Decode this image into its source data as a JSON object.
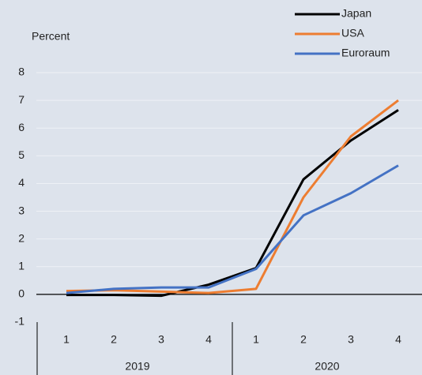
{
  "chart_data": {
    "type": "line",
    "y_label": "Percent",
    "categories": [
      "1",
      "2",
      "3",
      "4",
      "1",
      "2",
      "3",
      "4"
    ],
    "category_groups": [
      {
        "label": "2019",
        "categories": [
          "1",
          "2",
          "3",
          "4"
        ]
      },
      {
        "label": "2020",
        "categories": [
          "1",
          "2",
          "3",
          "4"
        ]
      }
    ],
    "series": [
      {
        "name": "Japan",
        "color": "#000000",
        "values": [
          -0.02,
          -0.02,
          -0.05,
          0.35,
          0.95,
          4.15,
          5.55,
          6.65
        ]
      },
      {
        "name": "USA",
        "color": "#ed7d31",
        "values": [
          0.12,
          0.15,
          0.1,
          0.05,
          0.2,
          3.5,
          5.7,
          7.0
        ]
      },
      {
        "name": "Euroraum",
        "color": "#4472c4",
        "values": [
          0.05,
          0.2,
          0.25,
          0.25,
          0.92,
          2.85,
          3.65,
          4.65
        ]
      }
    ],
    "ylim": [
      -1,
      8
    ],
    "yticks": [
      -1,
      0,
      1,
      2,
      3,
      4,
      5,
      6,
      7,
      8
    ],
    "grid": true,
    "legend": "top-right"
  }
}
